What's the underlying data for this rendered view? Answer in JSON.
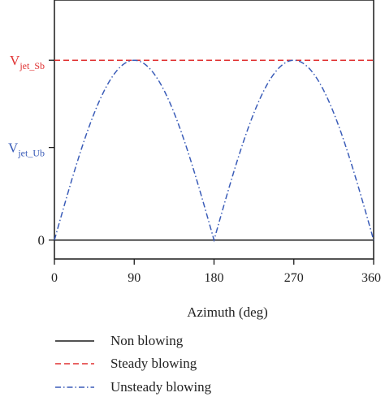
{
  "chart_data": {
    "type": "line",
    "xlabel": "Azimuth (deg)",
    "x_ticks": [
      "0",
      "90",
      "180",
      "270",
      "360"
    ],
    "xlim": [
      0,
      360
    ],
    "y_ticks": [
      {
        "main": "V",
        "sub": "jet_Sb",
        "color": "#e03030",
        "value": 1.0
      },
      {
        "main": "V",
        "sub": "jet_Ub",
        "color": "#3a5cb8",
        "value": 0.515
      },
      {
        "main": "0",
        "sub": "",
        "color": "#222222",
        "value": 0
      }
    ],
    "ylim": [
      -0.105,
      1.335
    ],
    "series": [
      {
        "name": "Non blowing",
        "style": "solid",
        "color": "#1a1a1a",
        "x": [
          0,
          360
        ],
        "y": [
          0,
          0
        ]
      },
      {
        "name": "Steady blowing",
        "style": "dashed",
        "color": "#e03030",
        "x": [
          0,
          360
        ],
        "y": [
          1.0,
          1.0
        ]
      },
      {
        "name": "Unsteady blowing",
        "style": "dashdot",
        "color": "#3a5cb8",
        "function": "abs(sin(x))",
        "x": [
          0,
          45,
          90,
          135,
          180,
          225,
          270,
          315,
          360
        ],
        "y": [
          0,
          0.707,
          1.0,
          0.707,
          0,
          0.707,
          1.0,
          0.707,
          0
        ]
      }
    ],
    "grid": false,
    "legend_position": "bottom-left"
  }
}
